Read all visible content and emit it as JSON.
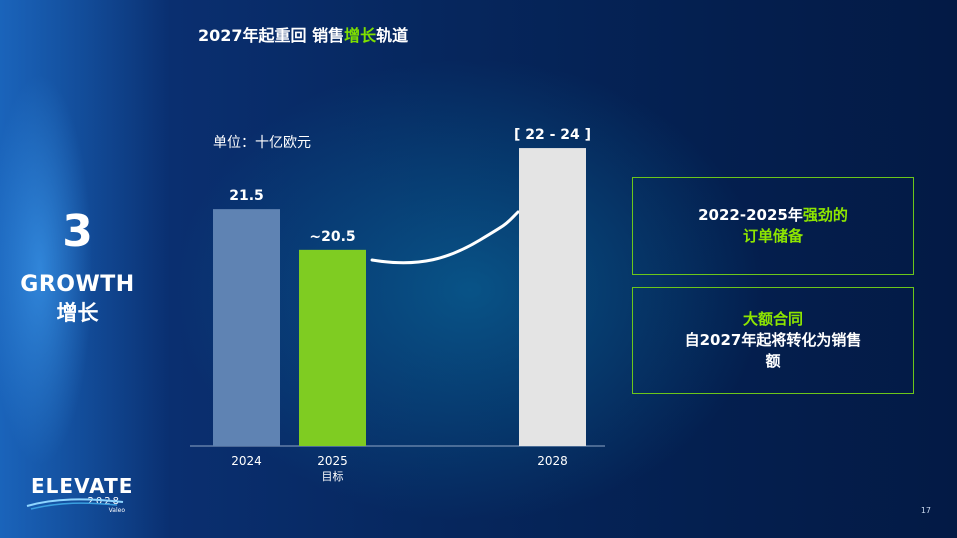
{
  "title": {
    "part1": "2027年起重回 销售",
    "highlight": "增长",
    "part2": "轨道"
  },
  "section": {
    "number": "3",
    "label_en": "GROWTH",
    "label_cn": "增长"
  },
  "unit_label": "单位：十亿欧元",
  "chart_data": {
    "type": "bar",
    "categories": [
      "2024",
      "2025",
      "2028"
    ],
    "category_sublabels": [
      "",
      "目标",
      ""
    ],
    "values": [
      21.5,
      20.5,
      23
    ],
    "value_range_2028": [
      22,
      24
    ],
    "data_labels": [
      "21.5",
      "~20.5",
      "[ 22 - 24 ]"
    ],
    "bar_colors": [
      "#5f83b3",
      "#7fcc22",
      "#e4e4e4"
    ],
    "xlabel": "",
    "ylabel": ""
  },
  "boxes": [
    {
      "line1": "2022-2025年",
      "line1_highlight": "强劲的",
      "line2": "订单储备"
    },
    {
      "line1": "大额合同",
      "line2": "自2027年起将转化为销售",
      "line3": "额"
    }
  ],
  "logo": {
    "main": "ELEVATE",
    "year": "2028",
    "sub": "Valeo"
  },
  "page_number": "17",
  "colors": {
    "accent_green": "#7ee000",
    "box_border": "#6cc61a"
  }
}
